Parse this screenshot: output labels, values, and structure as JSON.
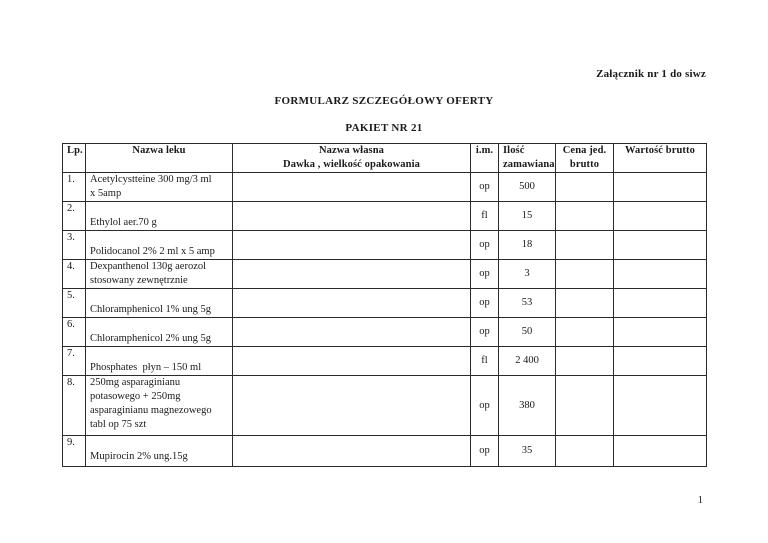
{
  "page": {
    "attachment_note": "Załącznik nr 1 do siwz",
    "title": "FORMULARZ SZCZEGÓŁOWY OFERTY",
    "subtitle": "PAKIET NR 21",
    "page_number": "1"
  },
  "table": {
    "headers": {
      "lp": "Lp.",
      "drug_name": "Nazwa leku",
      "own_name_line1": "Nazwa własna",
      "own_name_line2": "Dawka , wielkość opakowania",
      "unit": "i.m.",
      "qty_line1": "Ilość",
      "qty_line2": "zamawiana",
      "price_line1": "Cena jed.",
      "price_line2": "brutto",
      "value": "Wartość brutto"
    },
    "rows": [
      {
        "lp": "1.",
        "name_lines": [
          "Acetylcystteine 300 mg/3 ml",
          "x 5amp"
        ],
        "own_name": "",
        "unit": "op",
        "qty": "500",
        "price": "",
        "value": ""
      },
      {
        "lp": "2.",
        "name_lines": [
          "",
          "Ethylol aer.70 g"
        ],
        "own_name": "",
        "unit": "fl",
        "qty": "15",
        "price": "",
        "value": ""
      },
      {
        "lp": "3.",
        "name_lines": [
          "",
          "Polidocanol 2% 2 ml x 5 amp"
        ],
        "own_name": "",
        "unit": "op",
        "qty": "18",
        "price": "",
        "value": ""
      },
      {
        "lp": "4.",
        "name_lines": [
          "Dexpanthenol 130g aerozol",
          "stosowany zewnętrznie"
        ],
        "own_name": "",
        "unit": "op",
        "qty": "3",
        "price": "",
        "value": ""
      },
      {
        "lp": "5.",
        "name_lines": [
          "",
          "Chloramphenicol 1% ung 5g"
        ],
        "own_name": "",
        "unit": "op",
        "qty": "53",
        "price": "",
        "value": ""
      },
      {
        "lp": "6.",
        "name_lines": [
          "",
          "Chloramphenicol 2% ung 5g"
        ],
        "own_name": "",
        "unit": "op",
        "qty": "50",
        "price": "",
        "value": ""
      },
      {
        "lp": "7.",
        "name_lines": [
          "",
          "Phosphates  płyn – 150 ml"
        ],
        "own_name": "",
        "unit": "fl",
        "qty": "2 400",
        "price": "",
        "value": ""
      },
      {
        "lp": "8.",
        "name_lines": [
          "250mg asparaginianu",
          "potasowego + 250mg",
          "asparaginianu magnezowego",
          "tabl op 75 szt"
        ],
        "own_name": "",
        "unit": "op",
        "qty": "380",
        "price": "",
        "value": ""
      },
      {
        "lp": "9.",
        "name_lines": [
          "",
          "Mupirocin 2% ung.15g"
        ],
        "own_name": "",
        "unit": "op",
        "qty": "35",
        "price": "",
        "value": ""
      }
    ]
  }
}
